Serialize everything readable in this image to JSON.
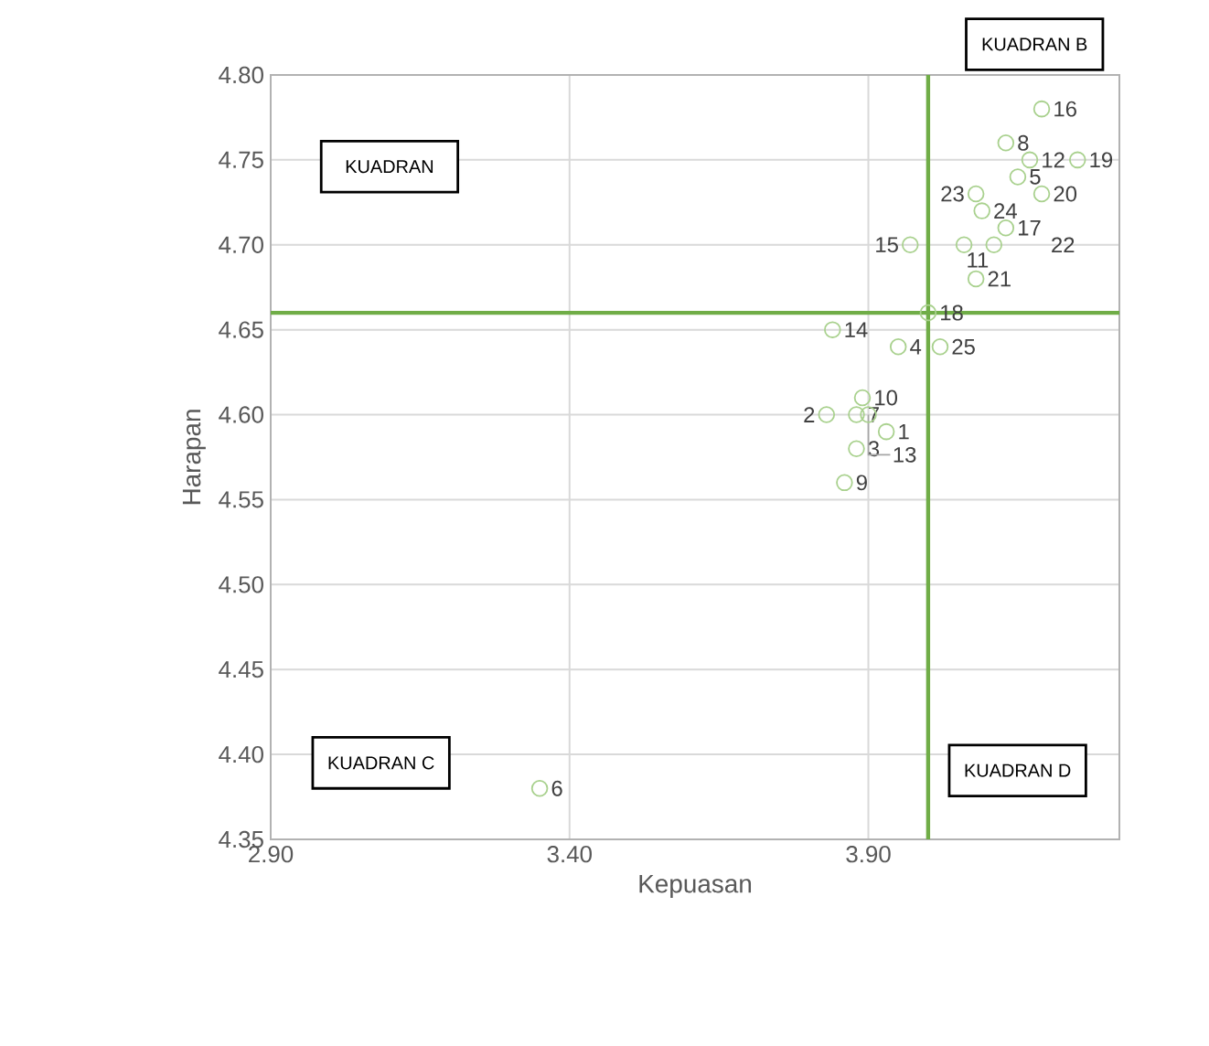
{
  "chart_data": {
    "type": "scatter",
    "xlabel": "Kepuasan",
    "ylabel": "Harapan",
    "x": [
      3.93,
      3.83,
      3.88,
      3.95,
      4.15,
      3.35,
      3.88,
      4.13,
      3.86,
      3.89,
      4.06,
      4.17,
      3.9,
      3.84,
      3.97,
      4.19,
      4.13,
      4.0,
      4.25,
      4.19,
      4.08,
      4.11,
      4.08,
      4.09,
      4.02
    ],
    "values": [
      4.59,
      4.6,
      4.58,
      4.64,
      4.74,
      4.38,
      4.6,
      4.76,
      4.56,
      4.61,
      4.7,
      4.75,
      4.6,
      4.65,
      4.7,
      4.78,
      4.71,
      4.66,
      4.75,
      4.73,
      4.68,
      4.7,
      4.73,
      4.72,
      4.64
    ],
    "color": "#a9d18e",
    "marker": "circle",
    "xlim": [
      2.9,
      4.32
    ],
    "xticks": [
      {
        "value": 2.9,
        "label": "2.90"
      },
      {
        "value": 3.4,
        "label": "3.40"
      },
      {
        "value": 3.9,
        "label": "3.90"
      }
    ],
    "ylim": [
      4.35,
      4.8
    ],
    "yticks": [
      4.35,
      {
        "value": 4.4,
        "label": "4.40"
      },
      4.45,
      {
        "value": 4.5,
        "label": "4.50"
      },
      4.55,
      {
        "value": 4.6,
        "label": "4.60"
      },
      4.65,
      {
        "value": 4.7,
        "label": "4.70"
      },
      4.75,
      {
        "value": 4.8,
        "label": "4.80"
      }
    ],
    "grid": true,
    "ref_lines": [
      {
        "axis": "x",
        "value": 4.0,
        "color": "#70ad47"
      },
      {
        "axis": "y",
        "value": 4.66,
        "color": "#70ad47"
      }
    ],
    "annotations": [
      "KUADRAN",
      "KUADRAN B",
      "KUADRAN C",
      "KUADRAN D",
      {
        "text": "1",
        "x": 3.93,
        "y": 4.59
      },
      {
        "text": "2",
        "x": 3.83,
        "y": 4.6
      },
      {
        "text": "3",
        "x": 3.88,
        "y": 4.58
      },
      {
        "text": "4",
        "x": 3.95,
        "y": 4.64
      },
      {
        "text": "5",
        "x": 4.15,
        "y": 4.74
      },
      {
        "text": "6",
        "x": 3.35,
        "y": 4.38
      },
      {
        "text": "7",
        "x": 3.88,
        "y": 4.6
      },
      {
        "text": "8",
        "x": 4.13,
        "y": 4.76
      },
      {
        "text": "9",
        "x": 3.86,
        "y": 4.56
      },
      {
        "text": "10",
        "x": 3.89,
        "y": 4.61
      },
      {
        "text": "11",
        "x": 4.06,
        "y": 4.7
      },
      {
        "text": "12",
        "x": 4.17,
        "y": 4.75
      },
      {
        "text": "13",
        "x": 3.9,
        "y": 4.6
      },
      {
        "text": "14",
        "x": 3.84,
        "y": 4.65
      },
      {
        "text": "15",
        "x": 3.97,
        "y": 4.7
      },
      {
        "text": "16",
        "x": 4.19,
        "y": 4.78
      },
      {
        "text": "17",
        "x": 4.13,
        "y": 4.71
      },
      {
        "text": "18",
        "x": 4.0,
        "y": 4.66
      },
      {
        "text": "19",
        "x": 4.25,
        "y": 4.75
      },
      {
        "text": "20",
        "x": 4.19,
        "y": 4.73
      },
      {
        "text": "21",
        "x": 4.08,
        "y": 4.68
      },
      {
        "text": "22",
        "x": 4.11,
        "y": 4.7
      },
      {
        "text": "23",
        "x": 4.08,
        "y": 4.73
      },
      {
        "text": "24",
        "x": 4.09,
        "y": 4.72
      },
      {
        "text": "25",
        "x": 4.02,
        "y": 4.64
      }
    ]
  }
}
